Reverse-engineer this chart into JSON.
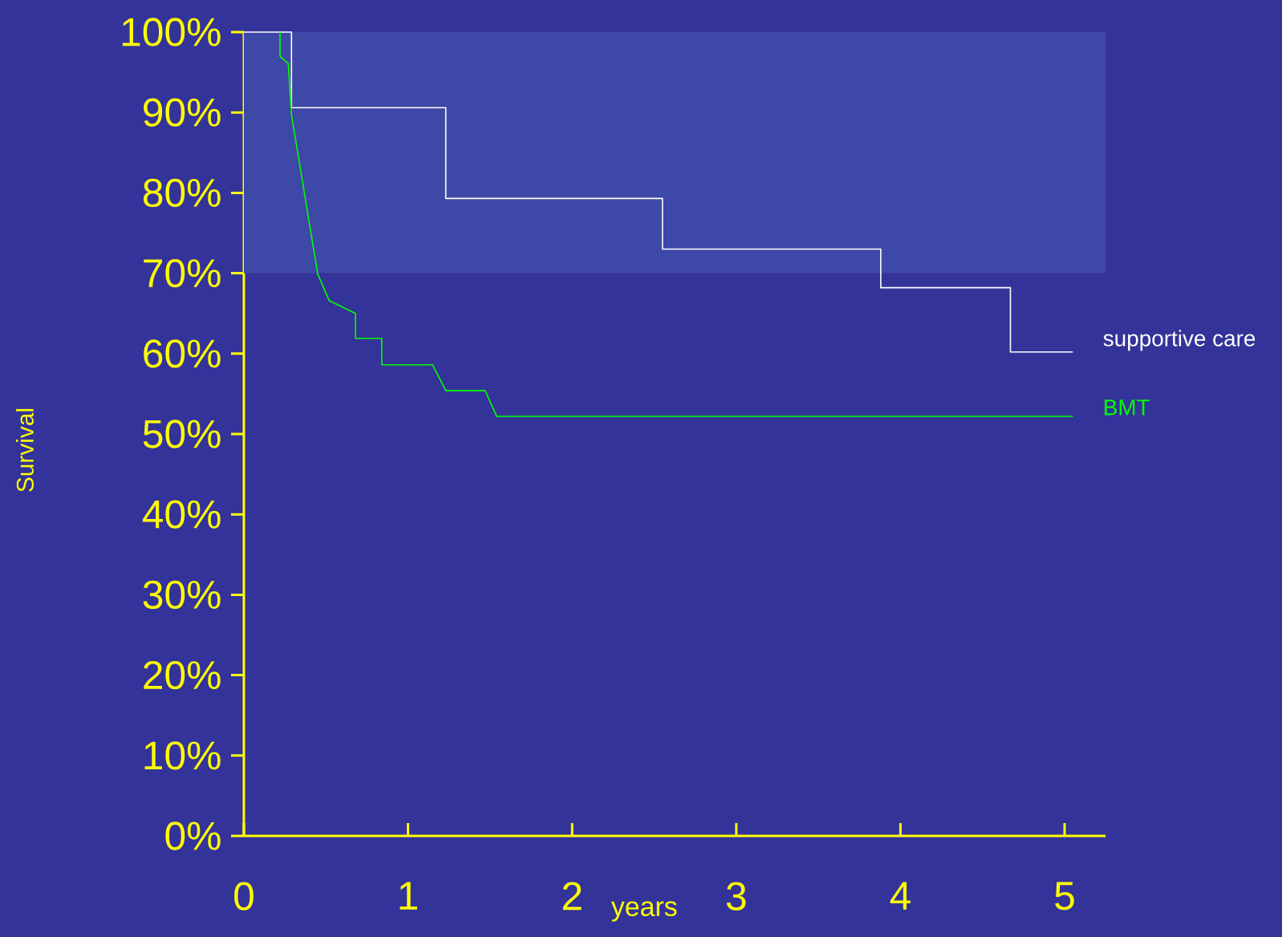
{
  "chart_data": {
    "type": "line",
    "ylabel": "Survival",
    "xlabel": "years",
    "xlim": [
      0,
      5.25
    ],
    "ylim": [
      0,
      100
    ],
    "xticks": [
      0,
      1,
      2,
      3,
      4,
      5
    ],
    "yticks": [
      {
        "value": 0,
        "label": "0%"
      },
      {
        "value": 10,
        "label": "10%"
      },
      {
        "value": 20,
        "label": "20%"
      },
      {
        "value": 30,
        "label": "30%"
      },
      {
        "value": 40,
        "label": "40%"
      },
      {
        "value": 50,
        "label": "50%"
      },
      {
        "value": 60,
        "label": "60%"
      },
      {
        "value": 70,
        "label": "70%"
      },
      {
        "value": 80,
        "label": "80%"
      },
      {
        "value": 90,
        "label": "90%"
      },
      {
        "value": 100,
        "label": "100%"
      }
    ],
    "bands": [
      {
        "axis": "y",
        "from": 70,
        "to": 100,
        "color": "#3e48a6"
      }
    ],
    "grid": false,
    "series": [
      {
        "name": "supportive care",
        "color": "#ffffff",
        "x": [
          0,
          0.29,
          0.29,
          1.23,
          1.23,
          2.55,
          2.55,
          3.88,
          3.88,
          4.67,
          4.67,
          5.05
        ],
        "values": [
          100,
          100,
          90.6,
          90.6,
          79.3,
          79.3,
          73,
          73,
          68.2,
          68.2,
          60.2,
          60.2
        ]
      },
      {
        "name": "BMT",
        "color": "#00ff00",
        "x": [
          0.22,
          0.22,
          0.27,
          0.29,
          0.45,
          0.52,
          0.68,
          0.68,
          0.84,
          0.84,
          1.15,
          1.23,
          1.47,
          1.54,
          5.05
        ],
        "values": [
          100,
          97,
          96.1,
          89.7,
          69.9,
          66.6,
          65,
          61.9,
          61.9,
          58.6,
          58.6,
          55.4,
          55.4,
          52.2,
          52.2
        ]
      }
    ]
  }
}
